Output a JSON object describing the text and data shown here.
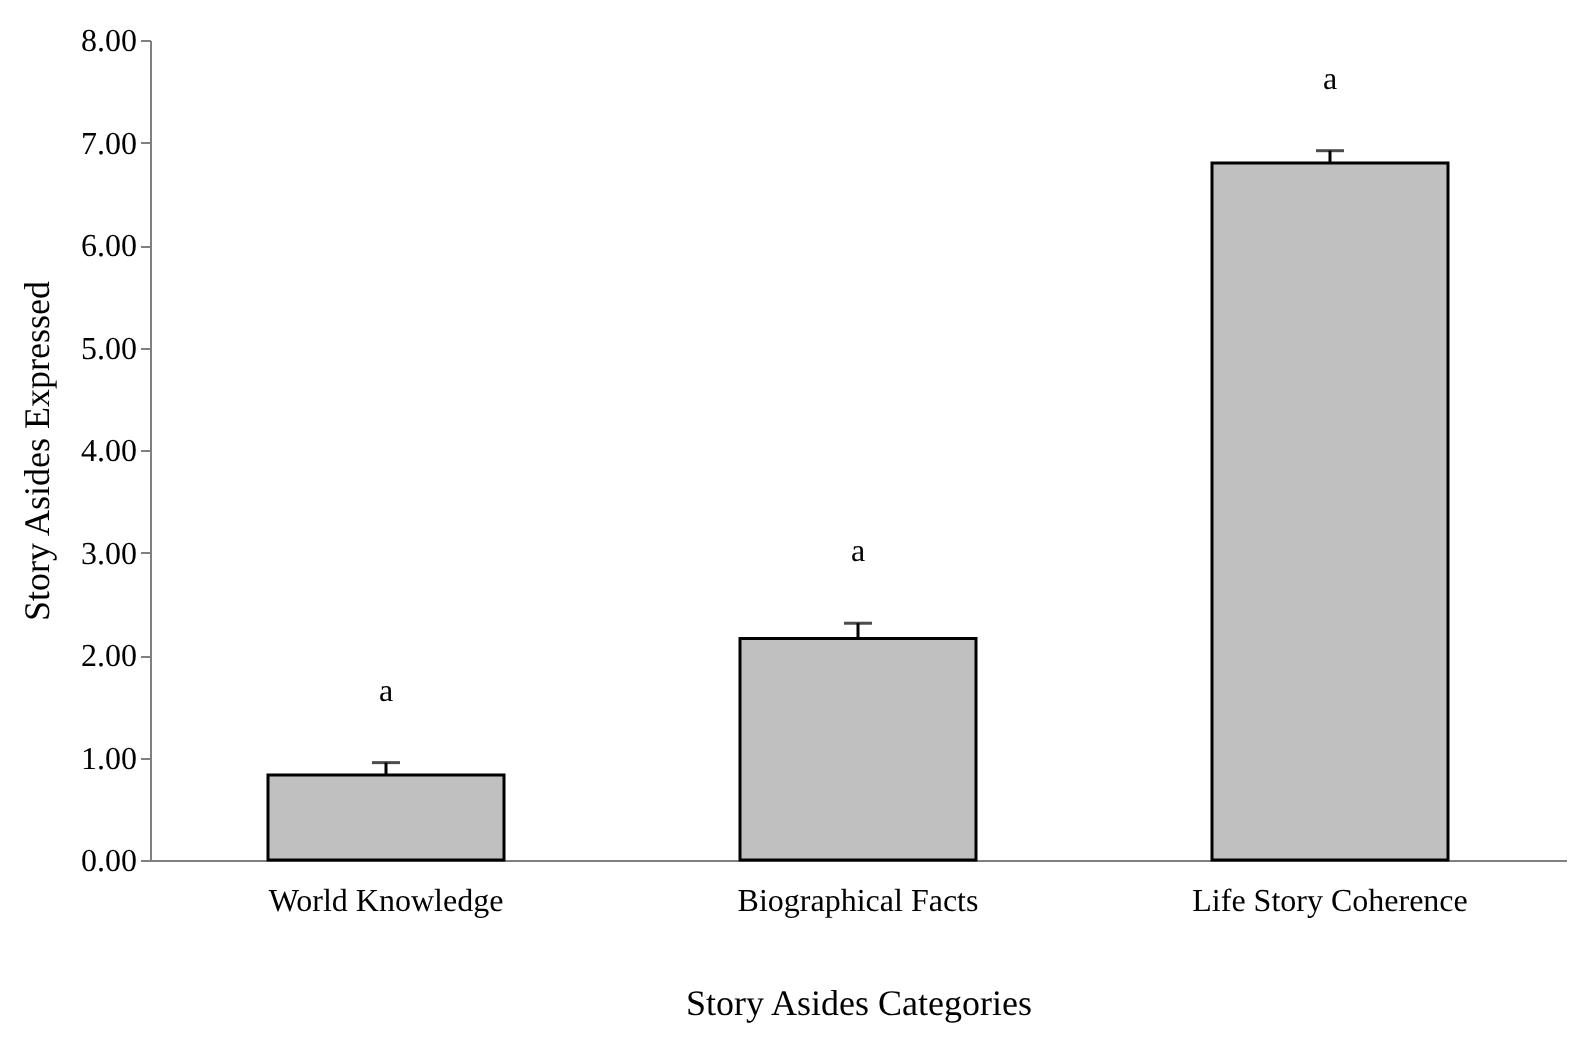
{
  "chart_data": {
    "type": "bar",
    "xlabel": "Story Asides Categories",
    "ylabel": "Story Asides Expressed",
    "categories": [
      "World Knowledge",
      "Biographical Facts",
      "Life Story Coherence"
    ],
    "values": [
      0.83,
      2.16,
      6.8
    ],
    "color": "#c0c0c0",
    "errors": [
      [
        0.83,
        0.95
      ],
      [
        2.16,
        2.31
      ],
      [
        6.8,
        6.92
      ]
    ],
    "ylim": [
      0,
      8
    ],
    "yticks": [
      {
        "value": 0,
        "label": "0.00"
      },
      {
        "value": 1,
        "label": "1.00"
      },
      {
        "value": 2,
        "label": "2.00"
      },
      {
        "value": 3,
        "label": "3.00"
      },
      {
        "value": 4,
        "label": "4.00"
      },
      {
        "value": 5,
        "label": "5.00"
      },
      {
        "value": 6,
        "label": "6.00"
      },
      {
        "value": 7,
        "label": "7.00"
      },
      {
        "value": 8,
        "label": "8.00"
      }
    ],
    "grid": false,
    "annotations": [
      "a",
      "a",
      "a"
    ]
  }
}
